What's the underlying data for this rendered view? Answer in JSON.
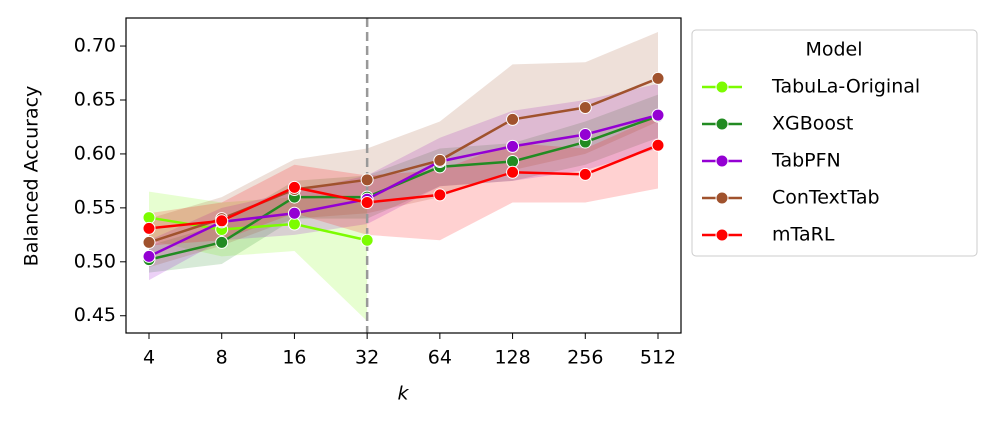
{
  "chart_data": {
    "type": "line",
    "xlabel": "k",
    "ylabel": "Balanced Accuracy",
    "categories": [
      "4",
      "8",
      "16",
      "32",
      "64",
      "128",
      "256",
      "512"
    ],
    "vline": 3,
    "ylim": [
      0.434,
      0.726
    ],
    "yticks": [
      0.45,
      {
        "value": 0.5,
        "label": "0.50"
      },
      0.55,
      {
        "value": 0.6,
        "label": "0.60"
      },
      0.65,
      {
        "value": 0.7,
        "label": "0.70"
      }
    ],
    "legend_title": "Model",
    "legend": "outside right",
    "series": [
      {
        "name": "TabuLa-Original",
        "color": "#7cfc00",
        "values": [
          0.541,
          0.53,
          0.535,
          0.52,
          null,
          null,
          null,
          null
        ],
        "upper": [
          0.565,
          0.555,
          0.56,
          0.555,
          null,
          null,
          null,
          null
        ],
        "lower": [
          0.52,
          0.505,
          0.51,
          0.445,
          null,
          null,
          null,
          null
        ]
      },
      {
        "name": "XGBoost",
        "color": "#228b22",
        "values": [
          0.502,
          0.518,
          0.56,
          0.56,
          0.588,
          0.593,
          0.611,
          0.635
        ],
        "upper": [
          0.515,
          0.535,
          0.575,
          0.58,
          0.605,
          0.61,
          0.63,
          0.655
        ],
        "lower": [
          0.49,
          0.498,
          0.54,
          0.54,
          0.57,
          0.575,
          0.59,
          0.615
        ]
      },
      {
        "name": "TabPFN",
        "color": "#9400d3",
        "values": [
          0.505,
          0.537,
          0.545,
          0.558,
          0.593,
          0.607,
          0.618,
          0.636
        ],
        "upper": [
          0.52,
          0.55,
          0.565,
          0.58,
          0.615,
          0.64,
          0.65,
          0.665
        ],
        "lower": [
          0.483,
          0.52,
          0.525,
          0.535,
          0.57,
          0.575,
          0.585,
          0.605
        ]
      },
      {
        "name": "ConTextTab",
        "color": "#a0522d",
        "values": [
          0.518,
          0.54,
          0.567,
          0.576,
          0.594,
          0.632,
          0.643,
          0.67
        ],
        "upper": [
          0.54,
          0.56,
          0.595,
          0.605,
          0.63,
          0.683,
          0.685,
          0.713
        ],
        "lower": [
          0.495,
          0.515,
          0.54,
          0.545,
          0.56,
          0.585,
          0.6,
          0.63
        ]
      },
      {
        "name": "mTaRL",
        "color": "#ff0000",
        "values": [
          0.531,
          0.538,
          0.569,
          0.555,
          0.562,
          0.583,
          0.581,
          0.608
        ],
        "upper": [
          0.545,
          0.555,
          0.59,
          0.58,
          0.585,
          0.61,
          0.605,
          0.635
        ],
        "lower": [
          0.515,
          0.52,
          0.545,
          0.525,
          0.52,
          0.555,
          0.555,
          0.568
        ]
      }
    ]
  }
}
